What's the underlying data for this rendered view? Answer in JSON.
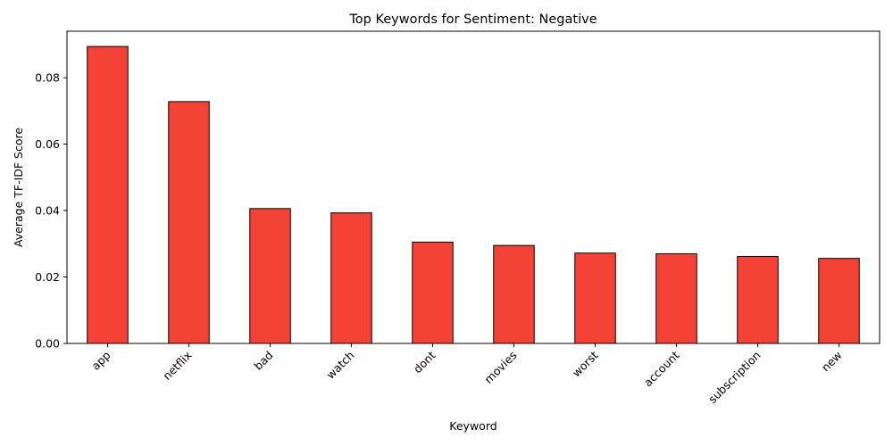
{
  "chart_data": {
    "type": "bar",
    "title": "Top Keywords for Sentiment: Negative",
    "xlabel": "Keyword",
    "ylabel": "Average TF-IDF Score",
    "categories": [
      "app",
      "netflix",
      "bad",
      "watch",
      "dont",
      "movies",
      "worst",
      "account",
      "subscription",
      "new"
    ],
    "values": [
      0.0894,
      0.0728,
      0.0406,
      0.0393,
      0.0305,
      0.0295,
      0.0272,
      0.027,
      0.0262,
      0.0256
    ],
    "ylim": [
      0,
      0.094
    ],
    "yticks": [
      0.0,
      0.02,
      0.04,
      0.06,
      0.08
    ],
    "ytick_labels": [
      "0.00",
      "0.02",
      "0.04",
      "0.06",
      "0.08"
    ],
    "xtick_rotation": 45,
    "grid": false,
    "bar_color": "#f44336",
    "edge_color": "#000000"
  }
}
